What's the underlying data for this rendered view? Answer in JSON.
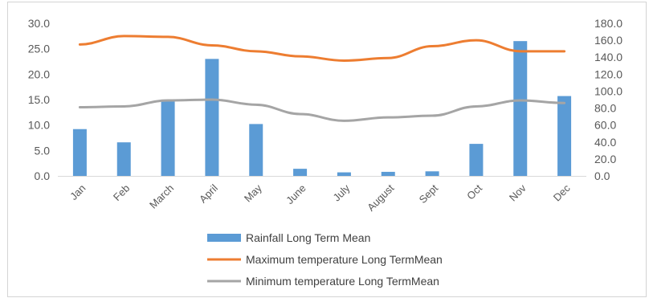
{
  "chart_data": {
    "type": "bar",
    "categories": [
      "Jan",
      "Feb",
      "March",
      "April",
      "May",
      "June",
      "July",
      "August",
      "Sept",
      "Oct",
      "Nov",
      "Dec"
    ],
    "series": [
      {
        "name": "Rainfall Long Term Mean",
        "type": "bar",
        "axis": "left",
        "color": "#5b9bd5",
        "values": [
          9.2,
          6.6,
          14.7,
          23.0,
          10.2,
          1.4,
          0.7,
          0.8,
          0.9,
          6.3,
          26.5,
          15.7
        ]
      },
      {
        "name": "Maximum temperature Long TermMean",
        "type": "line",
        "axis": "right",
        "color": "#ed7d31",
        "values": [
          155,
          165,
          164,
          154,
          147,
          141,
          136,
          139,
          153,
          160,
          147,
          147
        ]
      },
      {
        "name": "Minimum temperature Long TermMean",
        "type": "line",
        "axis": "right",
        "color": "#a5a5a5",
        "values": [
          81,
          82,
          89,
          90,
          84,
          73,
          65,
          69,
          71,
          82,
          89,
          86
        ]
      }
    ],
    "yleft": {
      "min": 0,
      "max": 30,
      "ticks": [
        "0.0",
        "5.0",
        "10.0",
        "15.0",
        "20.0",
        "25.0",
        "30.0"
      ]
    },
    "yright": {
      "min": 0,
      "max": 180,
      "ticks": [
        "0.0",
        "20.0",
        "40.0",
        "60.0",
        "80.0",
        "100.0",
        "120.0",
        "140.0",
        "160.0",
        "180.0"
      ]
    },
    "grid": false,
    "legend_position": "bottom"
  }
}
